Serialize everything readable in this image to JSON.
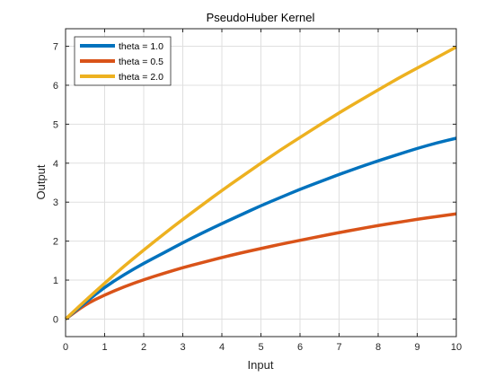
{
  "chart_data": {
    "type": "line",
    "title": "PseudoHuber Kernel",
    "xlabel": "Input",
    "ylabel": "Output",
    "xlim": [
      0,
      10
    ],
    "ylim": [
      -0.45,
      7.45
    ],
    "xticks": [
      0,
      1,
      2,
      3,
      4,
      5,
      6,
      7,
      8,
      9,
      10
    ],
    "yticks": [
      0,
      1,
      2,
      3,
      4,
      5,
      6,
      7
    ],
    "grid": true,
    "legend_location": "top-left",
    "x": [
      0,
      0.5,
      1,
      1.5,
      2,
      2.5,
      3,
      3.5,
      4,
      4.5,
      5,
      5.5,
      6,
      6.5,
      7,
      7.5,
      8,
      8.5,
      9,
      9.5,
      10
    ],
    "series": [
      {
        "name": "theta = 1.0",
        "color": "#0072BD",
        "values": [
          0,
          0.42,
          0.82,
          1.14,
          1.43,
          1.69,
          1.96,
          2.21,
          2.45,
          2.68,
          2.91,
          3.12,
          3.33,
          3.52,
          3.71,
          3.89,
          4.06,
          4.22,
          4.38,
          4.52,
          4.64
        ]
      },
      {
        "name": "theta = 0.5",
        "color": "#D95319",
        "values": [
          0,
          0.37,
          0.62,
          0.83,
          1.01,
          1.17,
          1.32,
          1.45,
          1.58,
          1.7,
          1.81,
          1.92,
          2.02,
          2.12,
          2.22,
          2.31,
          2.4,
          2.48,
          2.56,
          2.63,
          2.7
        ]
      },
      {
        "name": "theta = 2.0",
        "color": "#EDB120",
        "values": [
          0,
          0.47,
          0.92,
          1.36,
          1.77,
          2.17,
          2.56,
          2.93,
          3.3,
          3.65,
          4.0,
          4.34,
          4.66,
          4.98,
          5.29,
          5.59,
          5.88,
          6.17,
          6.44,
          6.71,
          6.98
        ]
      }
    ]
  }
}
